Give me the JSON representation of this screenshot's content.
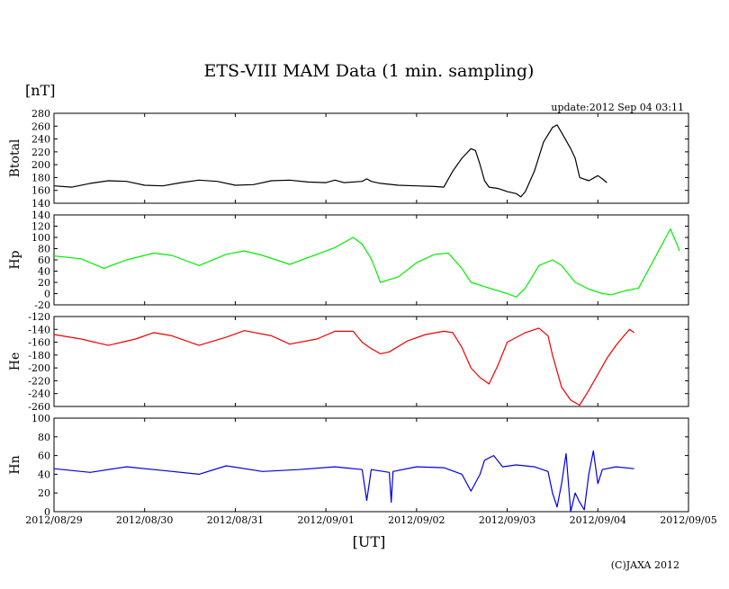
{
  "title": "ETS-VIII MAM Data (1 min. sampling)",
  "unit_label": "[nT]",
  "update_text": "update:2012 Sep 04 03:11",
  "xlabel": "[UT]",
  "credit": "(C)JAXA 2012",
  "colors": {
    "Btotal": "#000000",
    "Hp": "#00ee00",
    "He": "#ee0000",
    "Hn": "#0000dd"
  },
  "chart_data": {
    "type": "line",
    "title": "ETS-VIII MAM Data (1 min. sampling)",
    "x_unit": "days since 2012/08/29 00:00 UT",
    "x_range": [
      0,
      7
    ],
    "x_ticks": [
      {
        "v": 0,
        "label": "2012/08/29"
      },
      {
        "v": 1,
        "label": "2012/08/30"
      },
      {
        "v": 2,
        "label": "2012/08/31"
      },
      {
        "v": 3,
        "label": "2012/09/01"
      },
      {
        "v": 4,
        "label": "2012/09/02"
      },
      {
        "v": 5,
        "label": "2012/09/03"
      },
      {
        "v": 6,
        "label": "2012/09/04"
      },
      {
        "v": 7,
        "label": "2012/09/05"
      }
    ],
    "xlabel": "[UT]",
    "ylabel": "[nT]",
    "panels": [
      {
        "name": "Btotal",
        "ylabel": "Btotal",
        "ylim": [
          140,
          280
        ],
        "yticks": [
          280,
          260,
          240,
          220,
          200,
          180,
          160,
          140
        ],
        "color": "#000000",
        "points": [
          [
            0,
            167
          ],
          [
            0.2,
            165
          ],
          [
            0.4,
            171
          ],
          [
            0.6,
            175
          ],
          [
            0.8,
            174
          ],
          [
            1.0,
            168
          ],
          [
            1.2,
            167
          ],
          [
            1.4,
            172
          ],
          [
            1.6,
            176
          ],
          [
            1.8,
            174
          ],
          [
            2.0,
            168
          ],
          [
            2.2,
            169
          ],
          [
            2.4,
            175
          ],
          [
            2.6,
            176
          ],
          [
            2.8,
            173
          ],
          [
            3.0,
            172
          ],
          [
            3.1,
            176
          ],
          [
            3.2,
            172
          ],
          [
            3.4,
            174
          ],
          [
            3.45,
            178
          ],
          [
            3.5,
            174
          ],
          [
            3.6,
            171
          ],
          [
            3.8,
            168
          ],
          [
            4.0,
            167
          ],
          [
            4.2,
            166
          ],
          [
            4.3,
            165
          ],
          [
            4.4,
            190
          ],
          [
            4.5,
            210
          ],
          [
            4.6,
            225
          ],
          [
            4.65,
            222
          ],
          [
            4.7,
            200
          ],
          [
            4.75,
            175
          ],
          [
            4.8,
            165
          ],
          [
            4.9,
            163
          ],
          [
            5.0,
            158
          ],
          [
            5.1,
            155
          ],
          [
            5.15,
            150
          ],
          [
            5.2,
            158
          ],
          [
            5.3,
            190
          ],
          [
            5.4,
            235
          ],
          [
            5.5,
            258
          ],
          [
            5.55,
            262
          ],
          [
            5.6,
            250
          ],
          [
            5.7,
            225
          ],
          [
            5.75,
            210
          ],
          [
            5.8,
            180
          ],
          [
            5.9,
            175
          ],
          [
            6.0,
            183
          ],
          [
            6.05,
            178
          ],
          [
            6.1,
            172
          ]
        ]
      },
      {
        "name": "Hp",
        "ylabel": "Hp",
        "ylim": [
          -20,
          140
        ],
        "yticks": [
          140,
          120,
          100,
          80,
          60,
          40,
          20,
          0,
          -20
        ],
        "color": "#00ee00",
        "points": [
          [
            0,
            67
          ],
          [
            0.3,
            62
          ],
          [
            0.55,
            45
          ],
          [
            0.8,
            60
          ],
          [
            1.1,
            72
          ],
          [
            1.3,
            68
          ],
          [
            1.6,
            50
          ],
          [
            1.9,
            70
          ],
          [
            2.1,
            76
          ],
          [
            2.3,
            68
          ],
          [
            2.6,
            52
          ],
          [
            2.9,
            70
          ],
          [
            3.1,
            82
          ],
          [
            3.3,
            100
          ],
          [
            3.4,
            88
          ],
          [
            3.5,
            62
          ],
          [
            3.55,
            42
          ],
          [
            3.6,
            20
          ],
          [
            3.8,
            30
          ],
          [
            4.0,
            55
          ],
          [
            4.2,
            70
          ],
          [
            4.35,
            72
          ],
          [
            4.5,
            45
          ],
          [
            4.6,
            20
          ],
          [
            4.8,
            10
          ],
          [
            5.0,
            0
          ],
          [
            5.1,
            -6
          ],
          [
            5.2,
            10
          ],
          [
            5.35,
            50
          ],
          [
            5.5,
            60
          ],
          [
            5.6,
            50
          ],
          [
            5.75,
            20
          ],
          [
            5.9,
            8
          ],
          [
            6.05,
            0
          ],
          [
            6.15,
            -2
          ],
          [
            6.3,
            5
          ],
          [
            6.45,
            10
          ],
          [
            6.55,
            40
          ],
          [
            6.65,
            70
          ],
          [
            6.75,
            100
          ],
          [
            6.8,
            115
          ],
          [
            6.88,
            85
          ],
          [
            6.9,
            76
          ]
        ]
      },
      {
        "name": "He",
        "ylabel": "He",
        "ylim": [
          -260,
          -120
        ],
        "yticks": [
          -120,
          -140,
          -160,
          -180,
          -200,
          -220,
          -240,
          -260
        ],
        "color": "#ee0000",
        "points": [
          [
            0,
            -148
          ],
          [
            0.3,
            -155
          ],
          [
            0.6,
            -165
          ],
          [
            0.9,
            -155
          ],
          [
            1.1,
            -145
          ],
          [
            1.3,
            -150
          ],
          [
            1.6,
            -165
          ],
          [
            1.9,
            -152
          ],
          [
            2.1,
            -142
          ],
          [
            2.4,
            -150
          ],
          [
            2.6,
            -163
          ],
          [
            2.9,
            -155
          ],
          [
            3.1,
            -143
          ],
          [
            3.3,
            -143
          ],
          [
            3.4,
            -160
          ],
          [
            3.5,
            -170
          ],
          [
            3.6,
            -178
          ],
          [
            3.7,
            -175
          ],
          [
            3.9,
            -158
          ],
          [
            4.1,
            -148
          ],
          [
            4.3,
            -143
          ],
          [
            4.4,
            -145
          ],
          [
            4.5,
            -168
          ],
          [
            4.6,
            -200
          ],
          [
            4.7,
            -215
          ],
          [
            4.8,
            -225
          ],
          [
            4.9,
            -195
          ],
          [
            5.0,
            -160
          ],
          [
            5.2,
            -145
          ],
          [
            5.35,
            -138
          ],
          [
            5.45,
            -150
          ],
          [
            5.5,
            -180
          ],
          [
            5.6,
            -230
          ],
          [
            5.7,
            -250
          ],
          [
            5.8,
            -258
          ],
          [
            5.9,
            -235
          ],
          [
            6.0,
            -210
          ],
          [
            6.1,
            -185
          ],
          [
            6.2,
            -165
          ],
          [
            6.3,
            -148
          ],
          [
            6.35,
            -140
          ],
          [
            6.4,
            -145
          ]
        ]
      },
      {
        "name": "Hn",
        "ylabel": "Hn",
        "ylim": [
          0,
          100
        ],
        "yticks": [
          100,
          80,
          60,
          40,
          20,
          0
        ],
        "color": "#0000dd",
        "points": [
          [
            0,
            46
          ],
          [
            0.4,
            42
          ],
          [
            0.8,
            48
          ],
          [
            1.2,
            44
          ],
          [
            1.6,
            40
          ],
          [
            1.9,
            49
          ],
          [
            2.3,
            43
          ],
          [
            2.7,
            45
          ],
          [
            3.1,
            48
          ],
          [
            3.4,
            45
          ],
          [
            3.45,
            12
          ],
          [
            3.5,
            45
          ],
          [
            3.7,
            42
          ],
          [
            3.72,
            10
          ],
          [
            3.74,
            43
          ],
          [
            4.0,
            48
          ],
          [
            4.3,
            47
          ],
          [
            4.5,
            40
          ],
          [
            4.6,
            22
          ],
          [
            4.7,
            40
          ],
          [
            4.75,
            55
          ],
          [
            4.85,
            60
          ],
          [
            4.95,
            48
          ],
          [
            5.1,
            50
          ],
          [
            5.3,
            48
          ],
          [
            5.45,
            43
          ],
          [
            5.5,
            20
          ],
          [
            5.55,
            5
          ],
          [
            5.6,
            30
          ],
          [
            5.65,
            62
          ],
          [
            5.7,
            0
          ],
          [
            5.75,
            20
          ],
          [
            5.8,
            10
          ],
          [
            5.85,
            2
          ],
          [
            5.9,
            40
          ],
          [
            5.95,
            65
          ],
          [
            6.0,
            30
          ],
          [
            6.05,
            45
          ],
          [
            6.2,
            48
          ],
          [
            6.4,
            46
          ]
        ]
      }
    ]
  }
}
